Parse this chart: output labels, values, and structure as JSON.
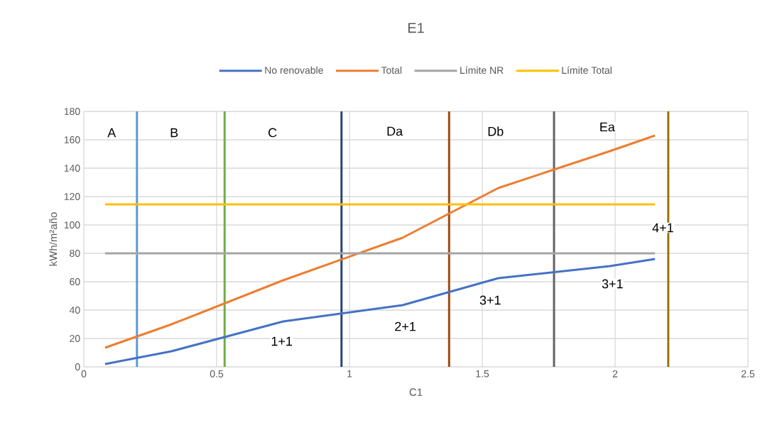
{
  "chart_data": {
    "type": "line",
    "title": "E1",
    "xlabel": "C1",
    "ylabel": "kWh/m²año",
    "series": [
      {
        "name": "No renovable",
        "color": "#4472c4",
        "x": [
          0.08,
          0.33,
          0.75,
          1.2,
          1.56,
          1.98,
          2.15
        ],
        "values": [
          2,
          11,
          32,
          43.5,
          62.5,
          71,
          76
        ]
      },
      {
        "name": "Total",
        "color": "#ed7d31",
        "x": [
          0.08,
          0.33,
          0.75,
          1.2,
          1.56,
          1.98,
          2.15
        ],
        "values": [
          13.5,
          30,
          61,
          91,
          126,
          152,
          163
        ]
      },
      {
        "name": "Límite NR",
        "color": "#a5a5a5",
        "x": [
          0.08,
          2.15
        ],
        "values": [
          80,
          80
        ]
      },
      {
        "name": "Límite Total",
        "color": "#ffc000",
        "x": [
          0.08,
          2.15
        ],
        "values": [
          114.5,
          114.5
        ]
      }
    ],
    "ref_lines": [
      {
        "axis": "x",
        "value": 0.2,
        "color": "#5b9bd5"
      },
      {
        "axis": "x",
        "value": 0.53,
        "color": "#70ad47"
      },
      {
        "axis": "x",
        "value": 0.97,
        "color": "#264478"
      },
      {
        "axis": "x",
        "value": 1.375,
        "color": "#9e480e"
      },
      {
        "axis": "x",
        "value": 1.77,
        "color": "#636363"
      },
      {
        "axis": "x",
        "value": 2.2,
        "color": "#997300"
      }
    ],
    "annotations": [
      {
        "text": "A",
        "x": 0.105,
        "y": 165
      },
      {
        "text": "B",
        "x": 0.34,
        "y": 165
      },
      {
        "text": "C",
        "x": 0.71,
        "y": 165
      },
      {
        "text": "Da",
        "x": 1.17,
        "y": 166
      },
      {
        "text": "Db",
        "x": 1.55,
        "y": 166
      },
      {
        "text": "Ea",
        "x": 1.97,
        "y": 169
      },
      {
        "text": "1+1",
        "x": 0.745,
        "y": 18
      },
      {
        "text": "2+1",
        "x": 1.21,
        "y": 28.5
      },
      {
        "text": "3+1",
        "x": 1.53,
        "y": 47
      },
      {
        "text": "3+1",
        "x": 1.99,
        "y": 58.5
      },
      {
        "text": "4+1",
        "x": 2.18,
        "y": 98
      }
    ],
    "xlim": [
      0,
      2.5
    ],
    "xticks": [
      0,
      0.5,
      1,
      1.5,
      2,
      2.5
    ],
    "ylim": [
      0,
      180
    ],
    "yticks": [
      0,
      20,
      40,
      60,
      80,
      100,
      120,
      140,
      160,
      180
    ],
    "grid": true,
    "legend": "top",
    "marker": "none",
    "line_style": "solid"
  }
}
